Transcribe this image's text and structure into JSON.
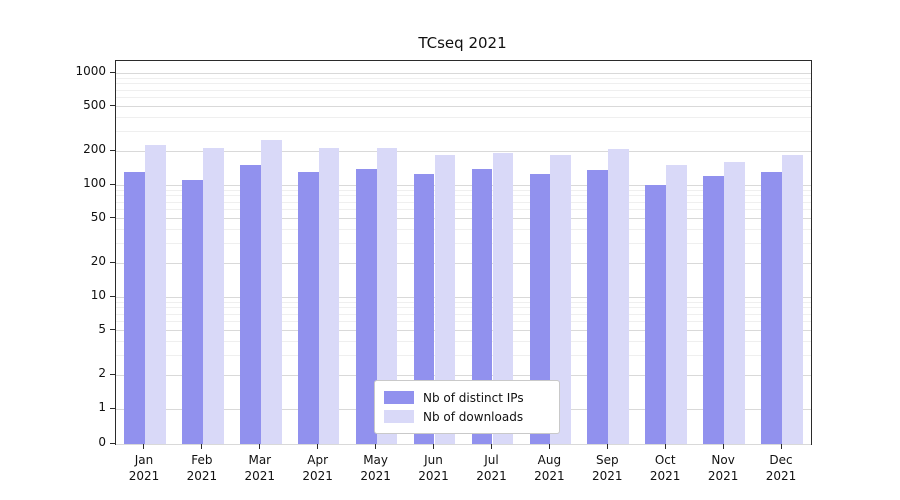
{
  "chart_data": {
    "type": "bar",
    "title": "TCseq 2021",
    "yscale": "symlog",
    "grid": true,
    "legend_position": "bottom-center",
    "categories": [
      "Jan",
      "Feb",
      "Mar",
      "Apr",
      "May",
      "Jun",
      "Jul",
      "Aug",
      "Sep",
      "Oct",
      "Nov",
      "Dec"
    ],
    "x_sublabel": "2021",
    "y_ticks": [
      0,
      1,
      2,
      5,
      10,
      20,
      50,
      100,
      200,
      500,
      1000
    ],
    "ylim": [
      0,
      1300
    ],
    "series": [
      {
        "name": "Nb of distinct IPs",
        "color": "#9191ee",
        "values": [
          130,
          110,
          150,
          130,
          140,
          125,
          140,
          125,
          135,
          100,
          120,
          130
        ]
      },
      {
        "name": "Nb of downloads",
        "color": "#d9d9f8",
        "values": [
          230,
          215,
          250,
          215,
          215,
          185,
          195,
          185,
          210,
          150,
          160,
          185
        ]
      }
    ]
  }
}
